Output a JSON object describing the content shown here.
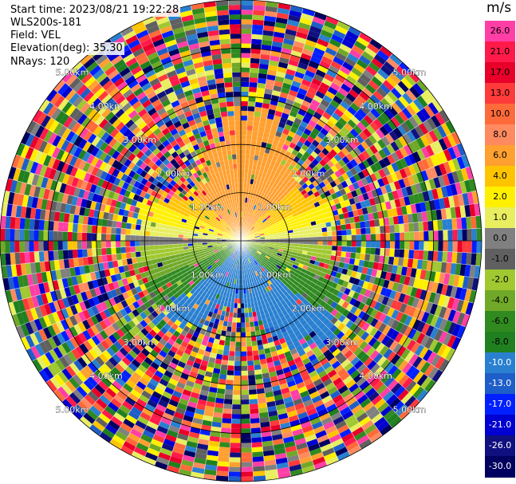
{
  "header": {
    "start_time": "Start time: 2023/08/21 19:22:28",
    "instrument": "WLS200s-181",
    "field": "Field: VEL",
    "elevation": "Elevation(deg): 35.30",
    "nrays": "NRays: 120"
  },
  "colorbar": {
    "unit": "m/s",
    "ticks": [
      "26.0",
      "21.0",
      "17.0",
      "13.0",
      "10.0",
      "8.0",
      "6.0",
      "4.0",
      "2.0",
      "1.0",
      "0.0",
      "-1.0",
      "-2.0",
      "-4.0",
      "-6.0",
      "-8.0",
      "-10.0",
      "-13.0",
      "-17.0",
      "-21.0",
      "-26.0",
      "-30.0"
    ],
    "colors": [
      "#ff3fa6",
      "#ff1a4a",
      "#e8002a",
      "#ff3a3a",
      "#ff6a3a",
      "#ff8a60",
      "#ffa030",
      "#ffc400",
      "#fff000",
      "#e8ee60",
      "#808080",
      "#606060",
      "#a0c830",
      "#70a828",
      "#308a20",
      "#208020",
      "#2a80d0",
      "#1e5ec8",
      "#0020ff",
      "#0000d0",
      "#101080",
      "#000060"
    ],
    "label_colors": [
      "#000",
      "#000",
      "#000",
      "#000",
      "#000",
      "#000",
      "#000",
      "#000",
      "#000",
      "#000",
      "#000",
      "#000",
      "#000",
      "#000",
      "#000",
      "#000",
      "#fff",
      "#fff",
      "#fff",
      "#fff",
      "#fff",
      "#fff"
    ]
  },
  "rings": [
    {
      "label": "1.00km",
      "km": 1
    },
    {
      "label": "2.00km",
      "km": 2
    },
    {
      "label": "3.00km",
      "km": 3
    },
    {
      "label": "4.00km",
      "km": 4
    },
    {
      "label": "5.00km",
      "km": 5
    }
  ],
  "map": {
    "max_range_km": 5,
    "nrays": 120,
    "gates_per_km": 10
  }
}
